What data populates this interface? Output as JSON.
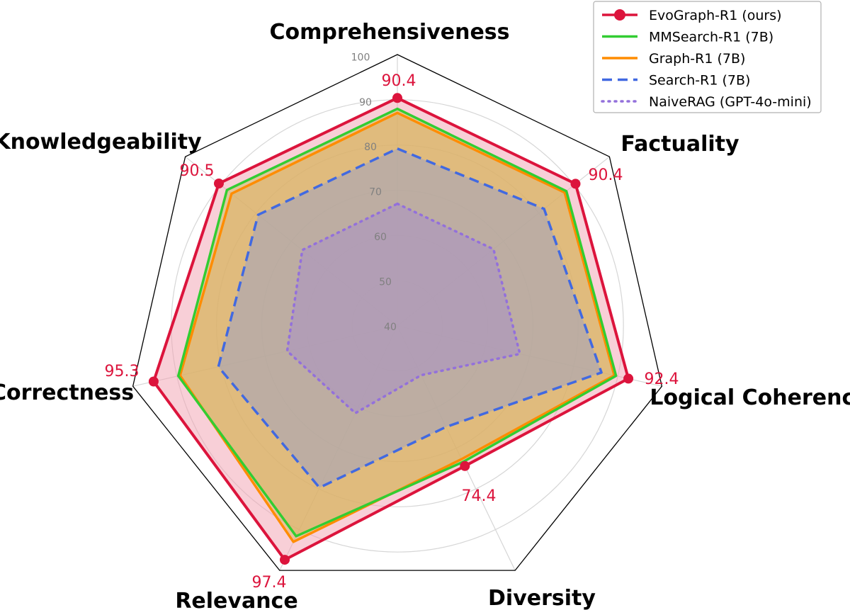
{
  "chart_data": {
    "type": "radar",
    "title": "",
    "axes": [
      "Comprehensiveness",
      "Factuality",
      "Logical Coherence",
      "Diversity",
      "Relevance",
      "Correctness",
      "Knowledgeability"
    ],
    "rlim": [
      40,
      100
    ],
    "ticks": [
      "40",
      "50",
      "60",
      "70",
      "80",
      "90",
      "100"
    ],
    "grid": true,
    "legend_position": "top-right",
    "series": [
      {
        "name": "EvoGraph-R1 (ours)",
        "values": [
          90.4,
          90.4,
          92.4,
          74.4,
          97.4,
          95.3,
          90.5
        ],
        "color": "#dc143c",
        "style": "solid-markers",
        "fill": "#f2a0b0"
      },
      {
        "name": "MMSearch-R1 (7B)",
        "values": [
          88.0,
          87.8,
          89.6,
          73.4,
          91.6,
          89.7,
          88.2
        ],
        "color": "#32cd32",
        "style": "solid",
        "fill": "#c8c060"
      },
      {
        "name": "Graph-R1 (7B)",
        "values": [
          87.1,
          87.3,
          89.2,
          72.7,
          93.0,
          89.3,
          86.9
        ],
        "color": "#ff8c00",
        "style": "solid",
        "fill": "#e0b060"
      },
      {
        "name": "Search-R1 (7B)",
        "values": [
          79.2,
          81.5,
          86.3,
          64.8,
          79.7,
          80.6,
          79.4
        ],
        "color": "#4169e1",
        "style": "dashed",
        "fill": "#9aa0c8"
      },
      {
        "name": "NaiveRAG (GPT-4o-mini)",
        "values": [
          67.0,
          67.2,
          67.8,
          52.1,
          61.4,
          65.0,
          66.9
        ],
        "color": "#9370db",
        "style": "dotted",
        "fill": "#a890c8"
      }
    ],
    "value_labels": [
      "90.4",
      "90.4",
      "92.4",
      "74.4",
      "97.4",
      "95.3",
      "90.5"
    ]
  }
}
